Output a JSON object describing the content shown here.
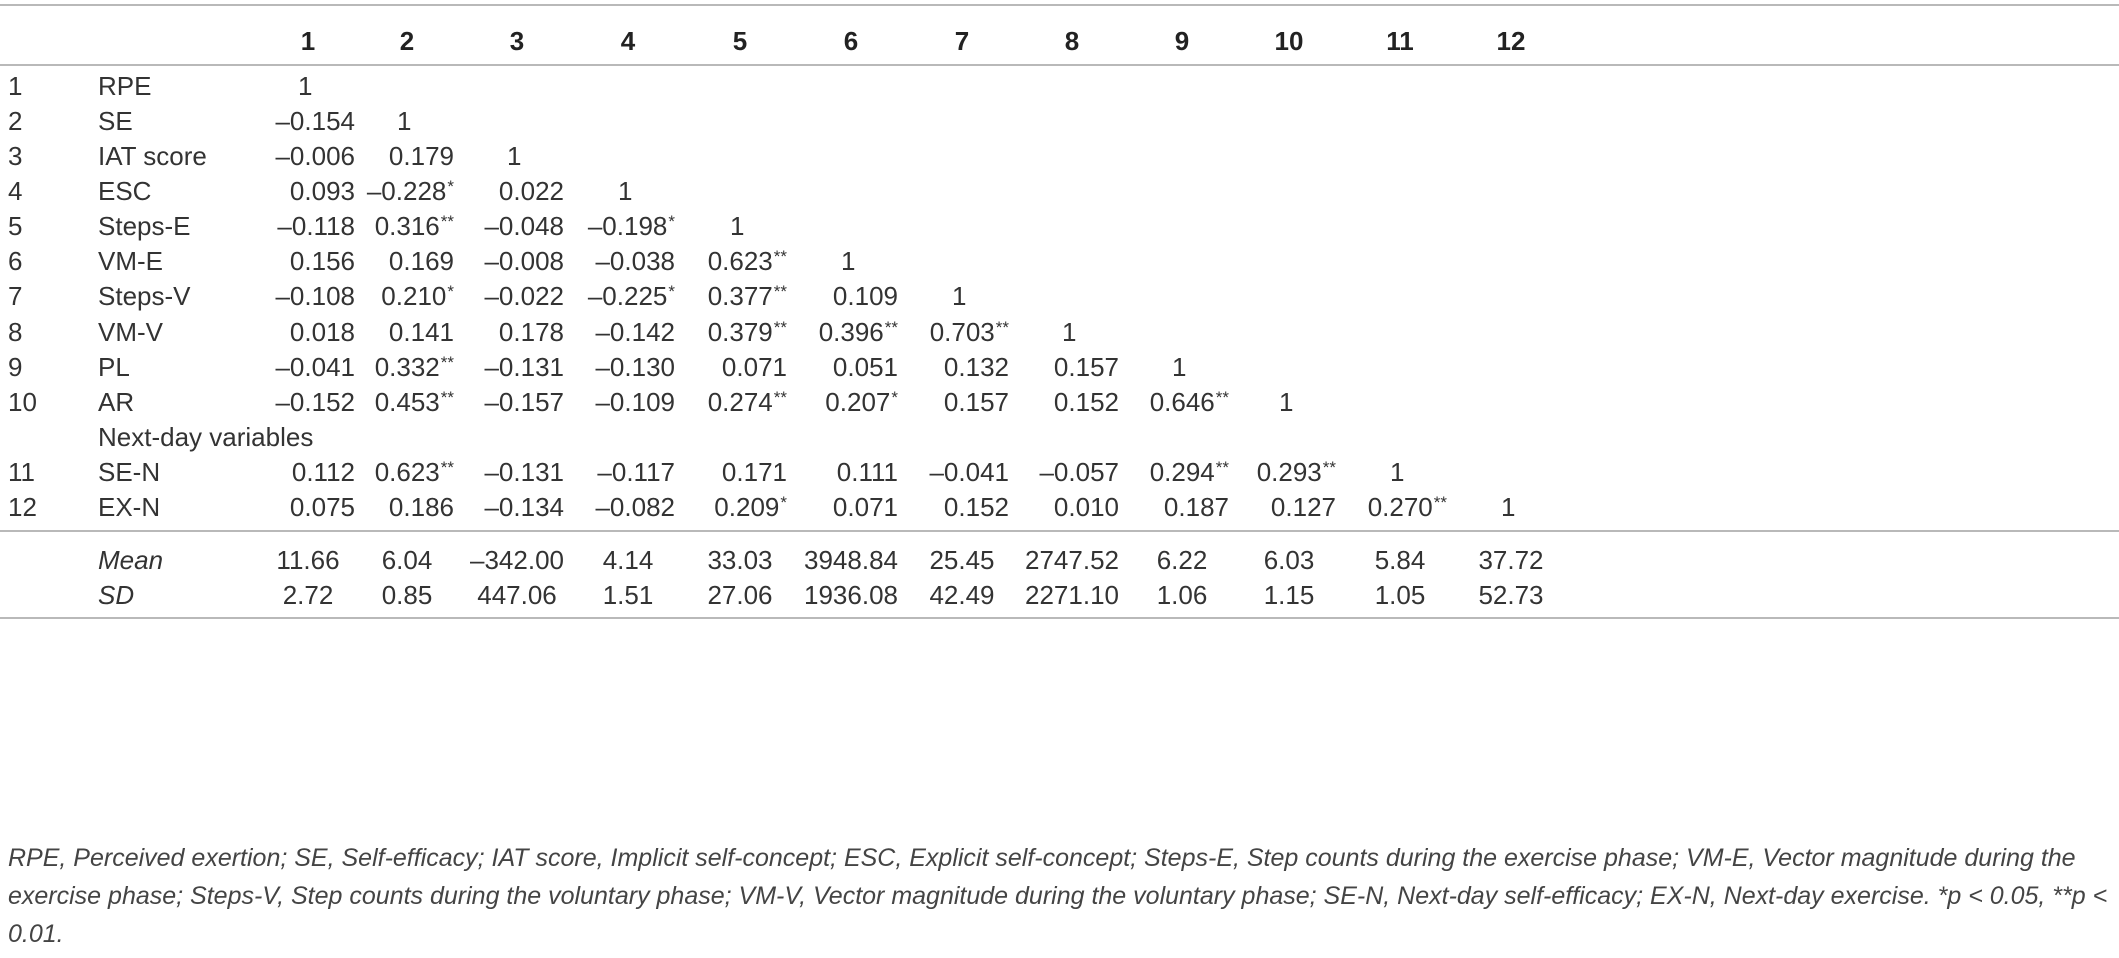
{
  "table": {
    "column_headers": [
      "1",
      "2",
      "3",
      "4",
      "5",
      "6",
      "7",
      "8",
      "9",
      "10",
      "11",
      "12"
    ],
    "rows": [
      {
        "no": "1",
        "variable": "RPE",
        "values": [
          "1"
        ]
      },
      {
        "no": "2",
        "variable": "SE",
        "values": [
          "–0.154",
          "1"
        ]
      },
      {
        "no": "3",
        "variable": "IAT score",
        "values": [
          "–0.006",
          "0.179",
          "1"
        ]
      },
      {
        "no": "4",
        "variable": "ESC",
        "values": [
          "0.093",
          "–0.228*",
          "0.022",
          "1"
        ]
      },
      {
        "no": "5",
        "variable": "Steps-E",
        "values": [
          "–0.118",
          "0.316**",
          "–0.048",
          "–0.198*",
          "1"
        ]
      },
      {
        "no": "6",
        "variable": "VM-E",
        "values": [
          "0.156",
          "0.169",
          "–0.008",
          "–0.038",
          "0.623**",
          "1"
        ]
      },
      {
        "no": "7",
        "variable": "Steps-V",
        "values": [
          "–0.108",
          "0.210*",
          "–0.022",
          "–0.225*",
          "0.377**",
          "0.109",
          "1"
        ]
      },
      {
        "no": "8",
        "variable": "VM-V",
        "values": [
          "0.018",
          "0.141",
          "0.178",
          "–0.142",
          "0.379**",
          "0.396**",
          "0.703**",
          "1"
        ]
      },
      {
        "no": "9",
        "variable": "PL",
        "values": [
          "–0.041",
          "0.332**",
          "–0.131",
          "–0.130",
          "0.071",
          "0.051",
          "0.132",
          "0.157",
          "1"
        ]
      },
      {
        "no": "10",
        "variable": "AR",
        "values": [
          "–0.152",
          "0.453**",
          "–0.157",
          "–0.109",
          "0.274**",
          "0.207*",
          "0.157",
          "0.152",
          "0.646**",
          "1"
        ]
      },
      {
        "no": "",
        "variable": "Next-day variables",
        "values": []
      },
      {
        "no": "11",
        "variable": "SE-N",
        "values": [
          "0.112",
          "0.623**",
          "–0.131",
          "–0.117",
          "0.171",
          "0.111",
          "–0.041",
          "–0.057",
          "0.294**",
          "0.293**",
          "1"
        ]
      },
      {
        "no": "12",
        "variable": "EX-N",
        "values": [
          "0.075",
          "0.186",
          "–0.134",
          "–0.082",
          "0.209*",
          "0.071",
          "0.152",
          "0.010",
          "0.187",
          "0.127",
          "0.270**",
          "1"
        ]
      }
    ],
    "summary_rows": [
      {
        "label": "Mean",
        "values": [
          "11.66",
          "6.04",
          "–342.00",
          "4.14",
          "33.03",
          "3948.84",
          "25.45",
          "2747.52",
          "6.22",
          "6.03",
          "5.84",
          "37.72"
        ]
      },
      {
        "label": "SD",
        "values": [
          "2.72",
          "0.85",
          "447.06",
          "1.51",
          "27.06",
          "1936.08",
          "42.49",
          "2271.10",
          "1.06",
          "1.15",
          "1.05",
          "52.73"
        ]
      }
    ]
  },
  "footnote": "RPE, Perceived exertion; SE, Self-efficacy; IAT score, Implicit self-concept; ESC, Explicit self-concept; Steps-E, Step counts during the exercise phase; VM-E, Vector magnitude during the exercise phase; Steps-V, Step counts during the voluntary phase; VM-V, Vector magnitude during the voluntary phase; SE-N, Next-day self-efficacy; EX-N, Next-day exercise. *p < 0.05, **p < 0.01."
}
